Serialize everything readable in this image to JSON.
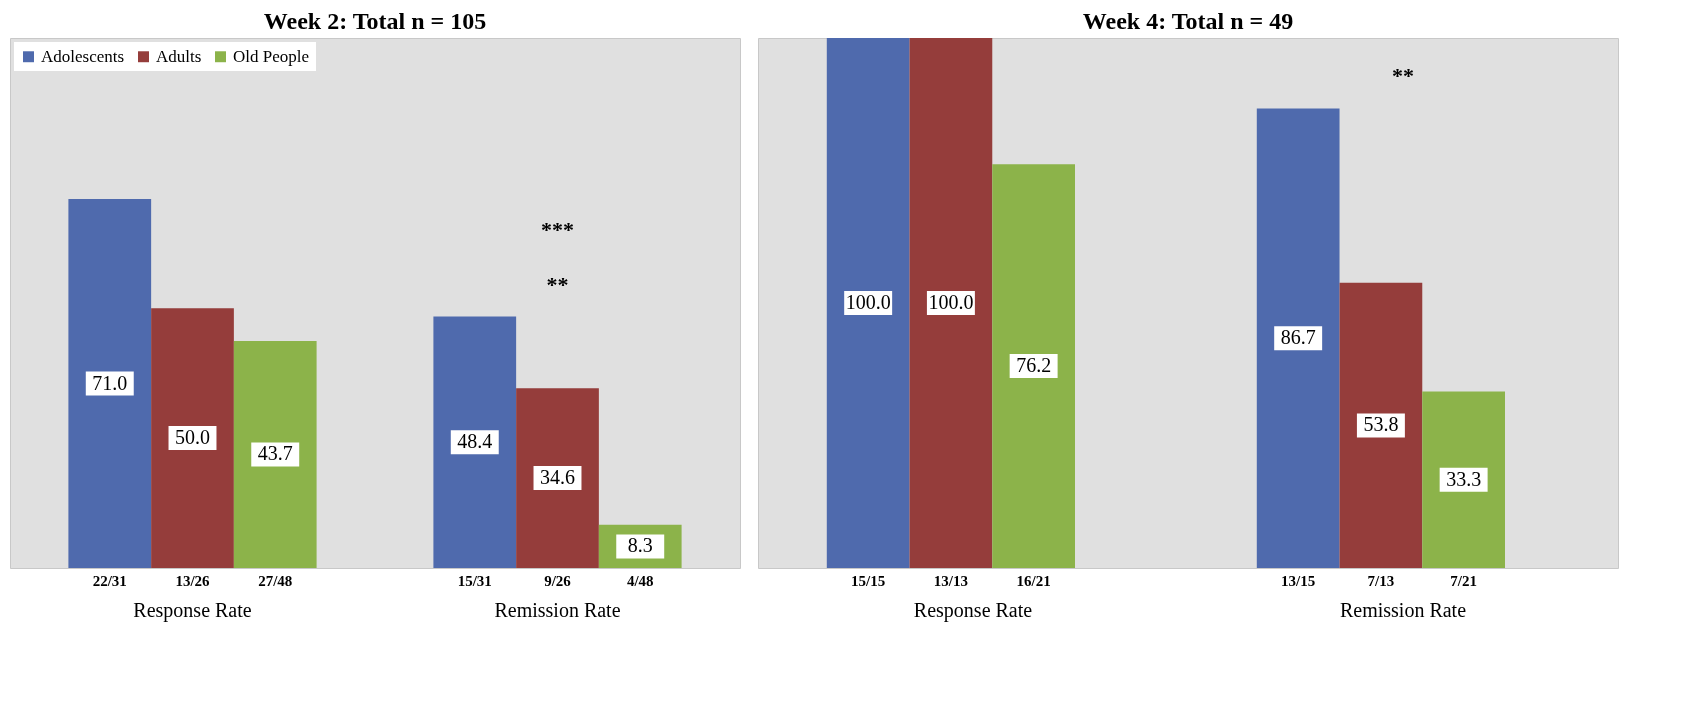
{
  "chart_data": [
    {
      "type": "bar",
      "title": "Week 2: Total n = 105",
      "categories": [
        "Response Rate",
        "Remission Rate"
      ],
      "series": [
        {
          "name": "Adolescents",
          "color": "#4f6aad",
          "values": [
            71.0,
            48.4
          ],
          "value_labels": [
            "71.0",
            "48.4"
          ]
        },
        {
          "name": "Adults",
          "color": "#953d3b",
          "values": [
            50.0,
            34.6
          ],
          "value_labels": [
            "50.0",
            "34.6"
          ]
        },
        {
          "name": "Old People",
          "color": "#8cb34a",
          "values": [
            43.7,
            8.3
          ],
          "value_labels": [
            "43.7",
            "8.3"
          ]
        }
      ],
      "ylim": [
        0,
        102
      ],
      "legend": "top left",
      "annotations": [
        "22/31",
        "13/26",
        "27/48",
        "15/31",
        "9/26",
        "4/48",
        "***",
        "**"
      ]
    },
    {
      "type": "bar",
      "title": "Week 4: Total n = 49",
      "categories": [
        "Response Rate",
        "Remission Rate"
      ],
      "series": [
        {
          "color": "#4f6aad",
          "values": [
            100.0,
            86.7
          ],
          "value_labels": [
            "100.0",
            "86.7"
          ]
        },
        {
          "color": "#953d3b",
          "values": [
            100.0,
            53.8
          ],
          "value_labels": [
            "100.0",
            "53.8"
          ]
        },
        {
          "color": "#8cb34a",
          "values": [
            76.2,
            33.3
          ],
          "value_labels": [
            "76.2",
            "33.3"
          ]
        }
      ],
      "ylim": [
        0,
        100
      ],
      "annotations": [
        "15/15",
        "13/13",
        "16/21",
        "13/15",
        "7/13",
        "7/21",
        "**"
      ]
    }
  ]
}
